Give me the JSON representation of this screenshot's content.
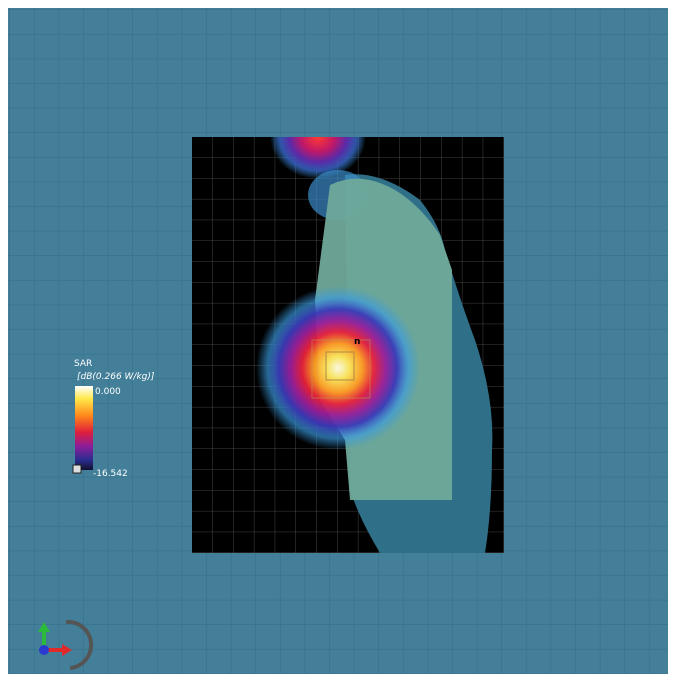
{
  "legend": {
    "title": "SAR",
    "unit": "[dB(0.266 W/kg)]",
    "max": "0.000",
    "min": "-16.542"
  },
  "marker": "n"
}
